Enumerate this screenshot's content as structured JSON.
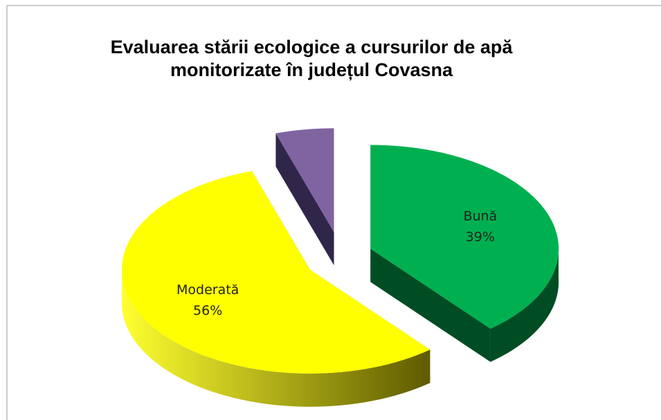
{
  "chart_data": {
    "type": "pie",
    "title": "Evaluarea stării ecologice a cursurilor de apă monitorizate în județul Covasna",
    "categories": [
      "Bună",
      "Moderată",
      null
    ],
    "values": [
      39,
      56,
      5
    ],
    "value_labels": [
      "39%",
      "56%",
      null
    ],
    "colors": [
      "#00b050",
      "#ffff00",
      "#8064a2"
    ],
    "side_colors": [
      "#004d24",
      "#8c8c00",
      "#30264a"
    ]
  }
}
